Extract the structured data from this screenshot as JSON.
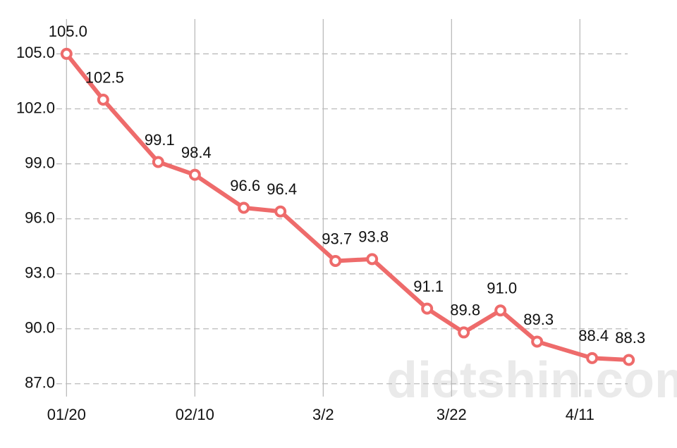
{
  "chart_data": {
    "type": "line",
    "watermark": "dietshin.com",
    "x": [
      0,
      6,
      15,
      21,
      29,
      35,
      44,
      50,
      59,
      65,
      71,
      77,
      86,
      92
    ],
    "series": [
      {
        "color": "#ee6b6b",
        "values": [
          105.0,
          102.5,
          99.1,
          98.4,
          96.6,
          96.4,
          93.7,
          93.8,
          91.1,
          89.8,
          91.0,
          89.3,
          88.4,
          88.3
        ],
        "value_labels": [
          "105.0",
          "102.5",
          "99.1",
          "98.4",
          "96.6",
          "96.4",
          "93.7",
          "93.8",
          "91.1",
          "89.8",
          "91.0",
          "89.3",
          "88.4",
          "88.3"
        ]
      }
    ],
    "xlim": [
      -2,
      94
    ],
    "xticks": [
      {
        "value": 0,
        "label": "01/20"
      },
      {
        "value": 21,
        "label": "02/10"
      },
      {
        "value": 42,
        "label": "3/2"
      },
      {
        "value": 63,
        "label": "3/22"
      },
      {
        "value": 84,
        "label": "4/11"
      }
    ],
    "ylim": [
      86.3,
      106.9
    ],
    "yticks": [
      {
        "value": 87,
        "label": "87.0"
      },
      {
        "value": 90,
        "label": "90.0"
      },
      {
        "value": 93,
        "label": "93.0"
      },
      {
        "value": 96,
        "label": "96.0"
      },
      {
        "value": 99,
        "label": "99.0"
      },
      {
        "value": 102,
        "label": "102.0"
      },
      {
        "value": 105,
        "label": "105.0"
      }
    ],
    "grid": true
  }
}
